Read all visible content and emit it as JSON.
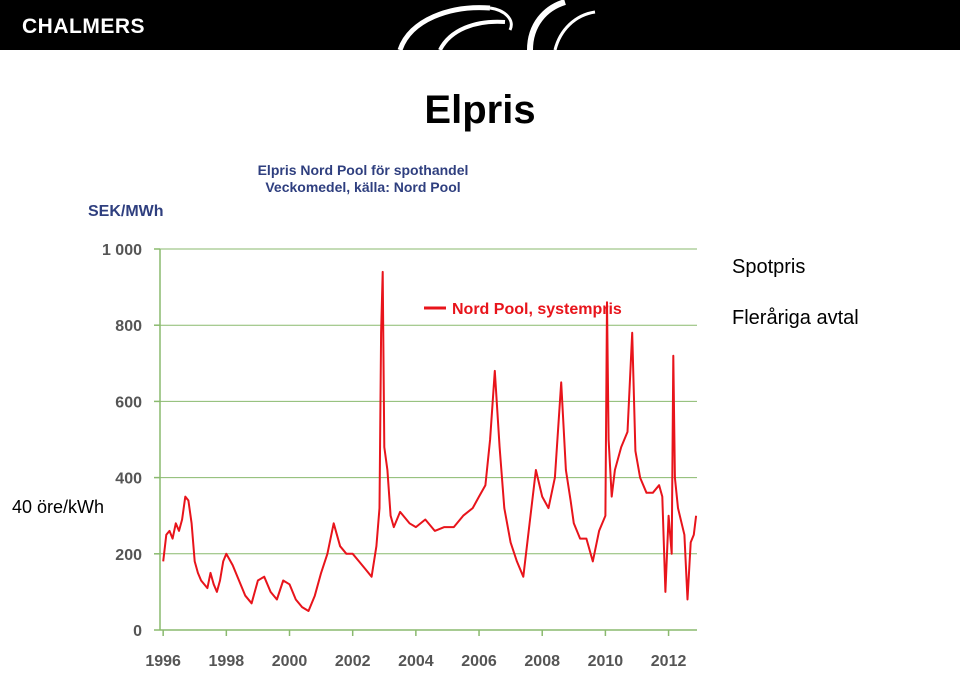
{
  "header": {
    "logo_text": "CHALMERS"
  },
  "slide": {
    "title": "Elpris",
    "annotations": [
      "Spotpris",
      "Fleråriga avtal"
    ],
    "left_note": "40 öre/kWh"
  },
  "colors": {
    "series": "#e8141b",
    "axis_text": "#555555",
    "title_text": "#2f3f7f",
    "grid": "#8aba6e"
  },
  "chart_data": {
    "type": "line",
    "title": "Elpris Nord Pool för spothandel",
    "subtitle": "Veckomedel, källa: Nord Pool",
    "ylabel": "SEK/MWh",
    "xlabel": "",
    "ylim": [
      0,
      1000
    ],
    "xlim": [
      1995.9,
      2012.9
    ],
    "yticks": [
      0,
      200,
      400,
      600,
      800,
      1000
    ],
    "ytick_labels": [
      "0",
      "200",
      "400",
      "600",
      "800",
      "1 000"
    ],
    "xticks": [
      1996,
      1998,
      2000,
      2002,
      2004,
      2006,
      2008,
      2010,
      2012
    ],
    "xtick_labels": [
      "1996",
      "1998",
      "2000",
      "2002",
      "2004",
      "2006",
      "2008",
      "2010",
      "2012"
    ],
    "grid": true,
    "legend": {
      "position": "top-center",
      "entries": [
        "Nord Pool, systempris"
      ]
    },
    "series": [
      {
        "name": "Nord Pool, systempris",
        "x": [
          1996.0,
          1996.1,
          1996.2,
          1996.3,
          1996.4,
          1996.5,
          1996.6,
          1996.7,
          1996.8,
          1996.9,
          1997.0,
          1997.1,
          1997.2,
          1997.3,
          1997.4,
          1997.5,
          1997.6,
          1997.7,
          1997.8,
          1997.9,
          1998.0,
          1998.2,
          1998.4,
          1998.6,
          1998.8,
          1999.0,
          1999.2,
          1999.4,
          1999.6,
          1999.8,
          2000.0,
          2000.2,
          2000.4,
          2000.6,
          2000.8,
          2001.0,
          2001.2,
          2001.4,
          2001.6,
          2001.8,
          2002.0,
          2002.2,
          2002.4,
          2002.6,
          2002.75,
          2002.85,
          2002.9,
          2002.95,
          2003.0,
          2003.1,
          2003.2,
          2003.3,
          2003.5,
          2003.8,
          2004.0,
          2004.3,
          2004.6,
          2004.9,
          2005.2,
          2005.5,
          2005.8,
          2006.0,
          2006.2,
          2006.35,
          2006.5,
          2006.65,
          2006.8,
          2007.0,
          2007.2,
          2007.4,
          2007.6,
          2007.8,
          2008.0,
          2008.2,
          2008.4,
          2008.6,
          2008.75,
          2008.9,
          2009.0,
          2009.2,
          2009.4,
          2009.6,
          2009.8,
          2010.0,
          2010.05,
          2010.1,
          2010.2,
          2010.3,
          2010.5,
          2010.7,
          2010.85,
          2010.95,
          2011.1,
          2011.3,
          2011.5,
          2011.7,
          2011.8,
          2011.9,
          2012.0,
          2012.1,
          2012.15,
          2012.2,
          2012.3,
          2012.5,
          2012.6,
          2012.7,
          2012.8,
          2012.87
        ],
        "values": [
          180,
          250,
          260,
          240,
          280,
          260,
          290,
          350,
          340,
          280,
          180,
          150,
          130,
          120,
          110,
          150,
          120,
          100,
          130,
          180,
          200,
          170,
          130,
          90,
          70,
          130,
          140,
          100,
          80,
          130,
          120,
          80,
          60,
          50,
          90,
          150,
          200,
          280,
          220,
          200,
          200,
          180,
          160,
          140,
          220,
          320,
          780,
          940,
          480,
          420,
          300,
          270,
          310,
          280,
          270,
          290,
          260,
          270,
          270,
          300,
          320,
          350,
          380,
          500,
          680,
          480,
          320,
          230,
          180,
          140,
          280,
          420,
          350,
          320,
          400,
          650,
          420,
          340,
          280,
          240,
          240,
          180,
          260,
          300,
          860,
          500,
          350,
          420,
          480,
          520,
          780,
          470,
          400,
          360,
          360,
          380,
          350,
          100,
          300,
          200,
          720,
          400,
          320,
          250,
          80,
          230,
          250,
          300
        ]
      }
    ]
  }
}
